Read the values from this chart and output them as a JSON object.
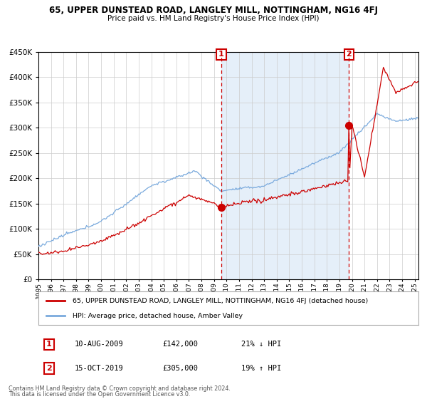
{
  "title": "65, UPPER DUNSTEAD ROAD, LANGLEY MILL, NOTTINGHAM, NG16 4FJ",
  "subtitle": "Price paid vs. HM Land Registry's House Price Index (HPI)",
  "sale1_date": "10-AUG-2009",
  "sale1_price": 142000,
  "sale1_label": "21% ↓ HPI",
  "sale2_date": "15-OCT-2019",
  "sale2_price": 305000,
  "sale2_label": "19% ↑ HPI",
  "legend_property": "65, UPPER DUNSTEAD ROAD, LANGLEY MILL, NOTTINGHAM, NG16 4FJ (detached house)",
  "legend_hpi": "HPI: Average price, detached house, Amber Valley",
  "footnote1": "Contains HM Land Registry data © Crown copyright and database right 2024.",
  "footnote2": "This data is licensed under the Open Government Licence v3.0.",
  "red_color": "#cc0000",
  "blue_color": "#7aaadd",
  "shade_color": "#cce0f5",
  "grid_color": "#cccccc",
  "background_color": "#ffffff",
  "ylim_min": 0,
  "ylim_max": 450000
}
